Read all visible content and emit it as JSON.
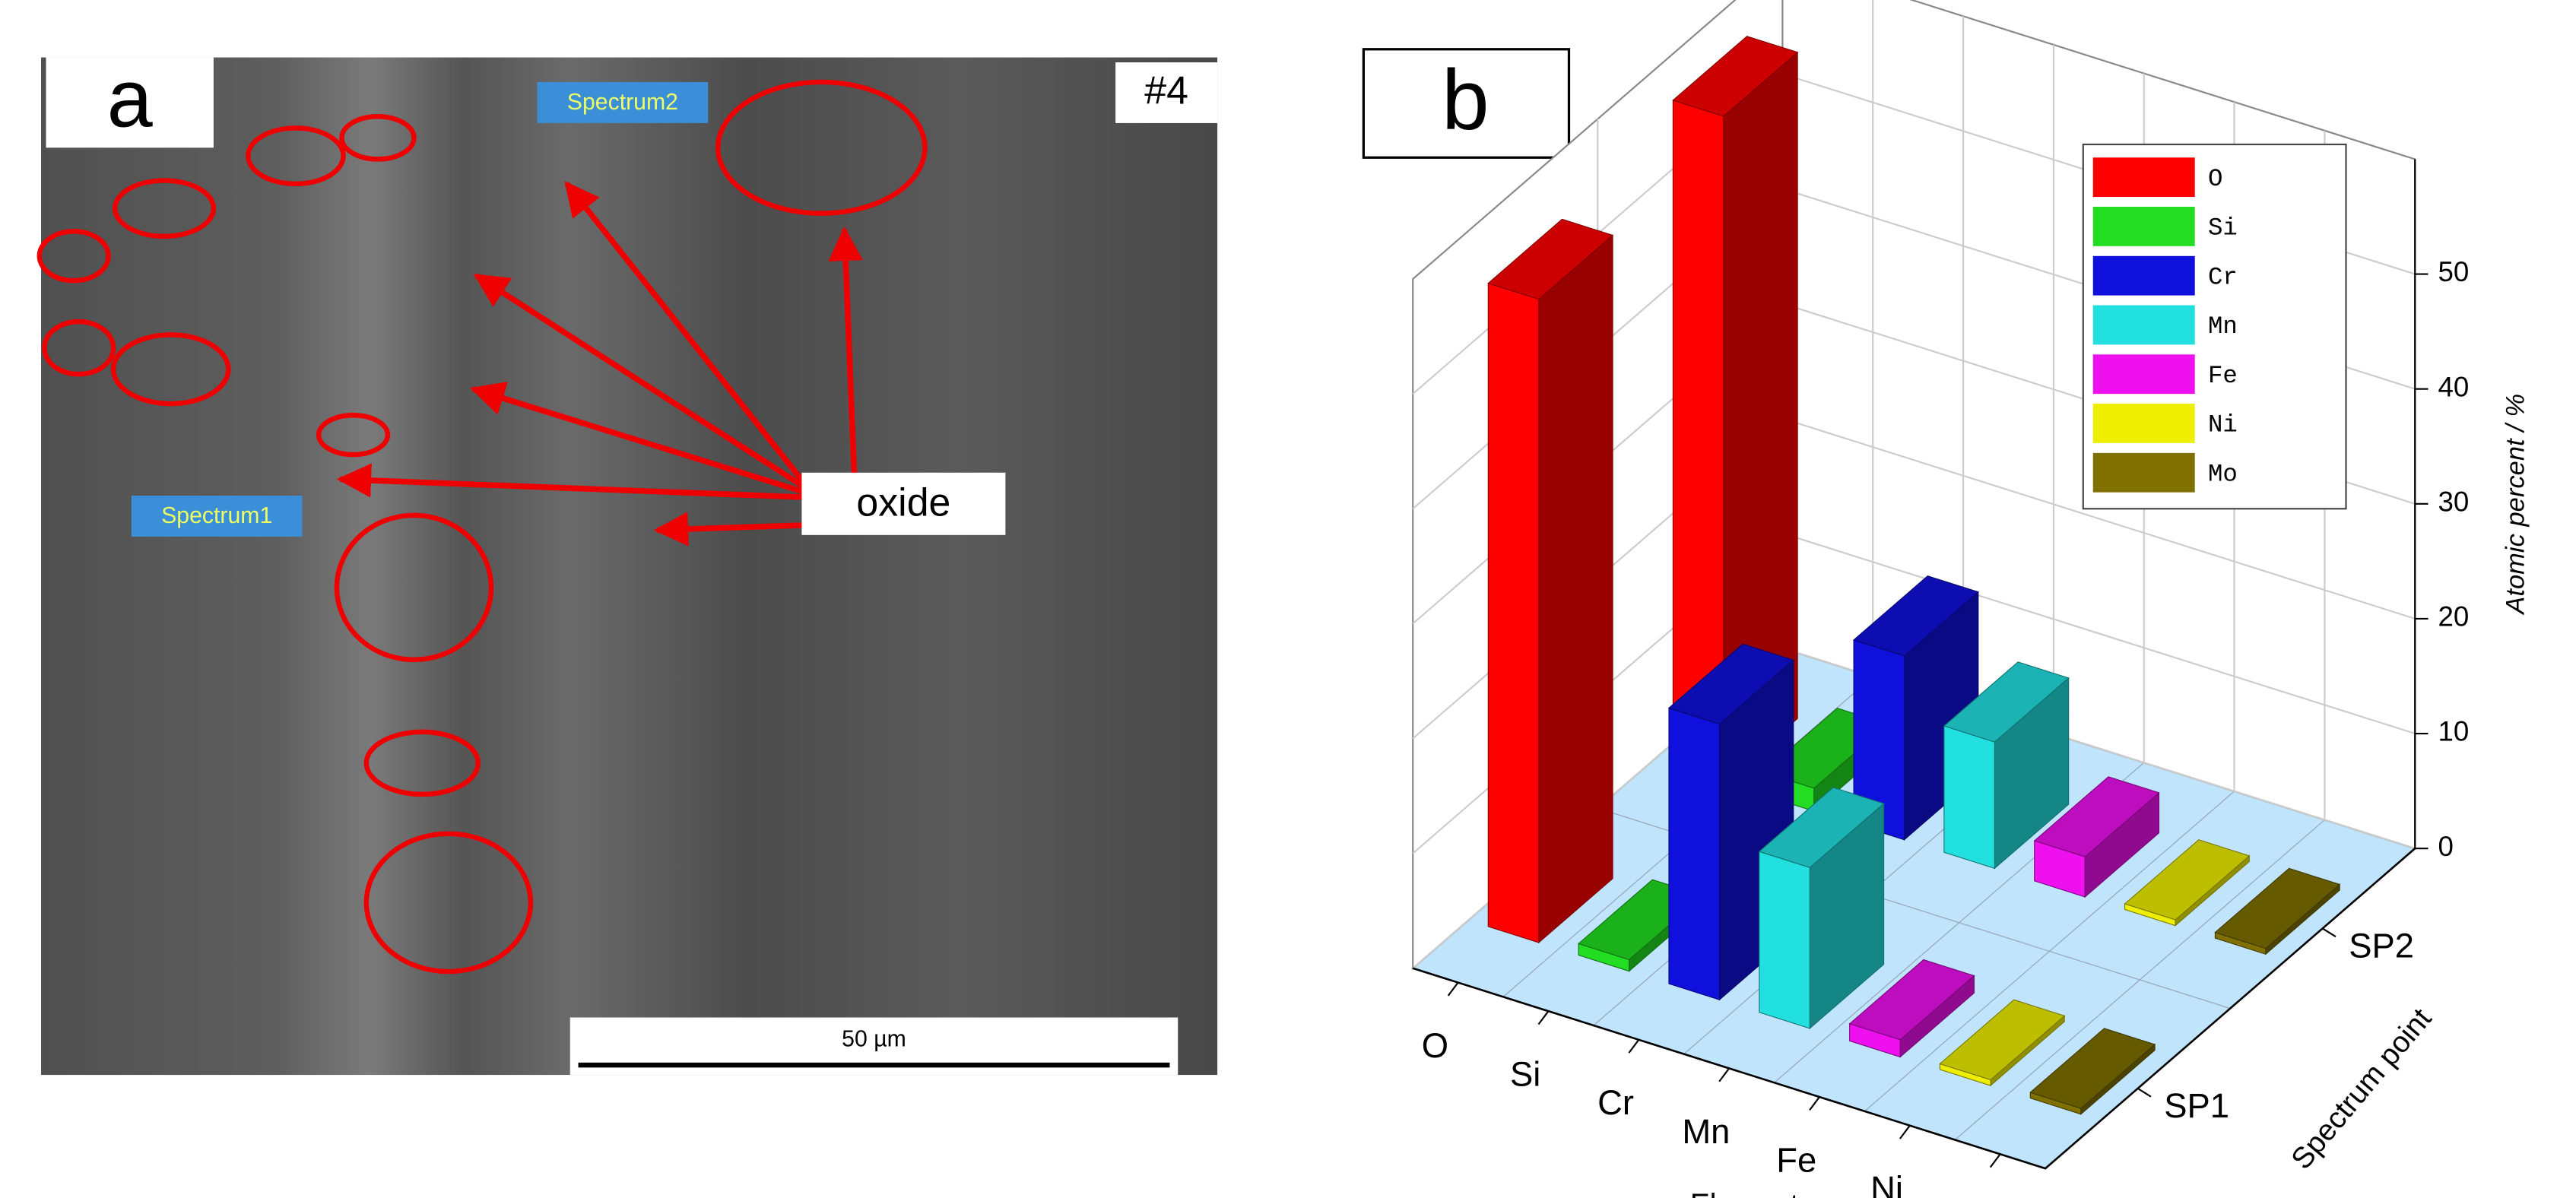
{
  "image": {
    "label": "a",
    "tag": "#4",
    "spectrum1": "Spectrum1",
    "spectrum2": "Spectrum2",
    "annotation": "oxide",
    "scale_bar": "50 µm"
  },
  "chart_data": {
    "type": "bar3d",
    "panel_label": "b",
    "xlabel": "Element",
    "ylabel": "Spectrum point",
    "zlabel": "Atomic percent / %",
    "categories": [
      "O",
      "Si",
      "Cr",
      "Mn",
      "Fe",
      "Ni",
      "Mo"
    ],
    "colors": [
      "#ff0000",
      "#22dd22",
      "#1010dd",
      "#22e0e0",
      "#ee10ee",
      "#eeee00",
      "#807000"
    ],
    "series": [
      {
        "name": "SP1",
        "values": [
          56,
          1,
          24,
          14,
          1.5,
          0.5,
          0.5
        ]
      },
      {
        "name": "SP2",
        "values": [
          58,
          2,
          16,
          11,
          3.5,
          0.5,
          0.5
        ]
      }
    ],
    "zlim": [
      0,
      60
    ],
    "zticks": [
      0,
      10,
      20,
      30,
      40,
      50
    ],
    "grid": true
  }
}
